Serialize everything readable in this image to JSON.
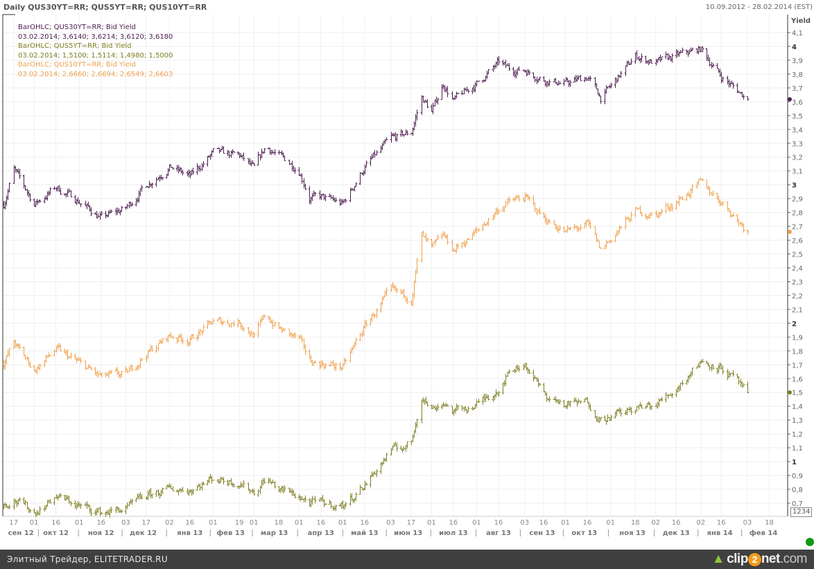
{
  "header": {
    "title": "Daily QUS30YT=RR; QUS5YT=RR; QUS10YT=RR",
    "date_range": "10.09.2012 - 28.02.2014 (EST)"
  },
  "legend": [
    {
      "label": "BarOHLC; QUS30YT=RR; Bid Yield",
      "values": "03.02.2014; 3,6140; 3,6214; 3,6120; 3,6180",
      "color": "#4a1c4e"
    },
    {
      "label": "BarOHLC; QUS5YT=RR; Bid Yield",
      "values": "03.02.2014; 1,5100; 1,5114; 1,4980; 1,5000",
      "color": "#7d7d22"
    },
    {
      "label": "BarOHLC; QUS10YT=RR; Bid Yield",
      "values": "03.02.2014; 2,6660; 2,6694; 2,6549; 2,6603",
      "color": "#f0a04e"
    }
  ],
  "axis_badge": "1234",
  "footer": {
    "text": "Элитный Трейдер, ELITETRADER.RU",
    "logo_text": "clip2net.com"
  },
  "chart_data": {
    "type": "ohlc",
    "title": "Daily QUS30YT=RR; QUS5YT=RR; QUS10YT=RR",
    "ylabel": "Yield",
    "ylim": [
      0.65,
      4.15
    ],
    "yticks": [
      "4,1",
      "4",
      "3,9",
      "3,8",
      "3,7",
      "3,6",
      "3,5",
      "3,4",
      "3,3",
      "3,2",
      "3,1",
      "3",
      "2,9",
      "2,8",
      "2,7",
      "2,6",
      "2,5",
      "2,4",
      "2,3",
      "2,2",
      "2,1",
      "2",
      "1,9",
      "1,8",
      "1,7",
      "1,6",
      "1,5",
      "1,4",
      "1,3",
      "1,2",
      "1,1",
      "1",
      "0,9",
      "0,8",
      "0,7"
    ],
    "xrange": [
      "2012-09-10",
      "2014-02-03"
    ],
    "xticks": [
      {
        "date": "2012-09-17",
        "label": "17"
      },
      {
        "date": "2012-10-01",
        "label": "01"
      },
      {
        "date": "2012-10-16",
        "label": "16"
      },
      {
        "date": "2012-11-01",
        "label": "01"
      },
      {
        "date": "2012-11-16",
        "label": "16"
      },
      {
        "date": "2012-12-03",
        "label": "03"
      },
      {
        "date": "2012-12-17",
        "label": "17"
      },
      {
        "date": "2013-01-02",
        "label": "02"
      },
      {
        "date": "2013-01-16",
        "label": "16"
      },
      {
        "date": "2013-02-01",
        "label": "01"
      },
      {
        "date": "2013-02-19",
        "label": "19"
      },
      {
        "date": "2013-03-01",
        "label": "01"
      },
      {
        "date": "2013-03-18",
        "label": "18"
      },
      {
        "date": "2013-04-01",
        "label": "01"
      },
      {
        "date": "2013-04-16",
        "label": "16"
      },
      {
        "date": "2013-05-01",
        "label": "01"
      },
      {
        "date": "2013-05-16",
        "label": "16"
      },
      {
        "date": "2013-06-03",
        "label": "03"
      },
      {
        "date": "2013-06-17",
        "label": "17"
      },
      {
        "date": "2013-07-01",
        "label": "01"
      },
      {
        "date": "2013-07-16",
        "label": "16"
      },
      {
        "date": "2013-08-01",
        "label": "01"
      },
      {
        "date": "2013-08-16",
        "label": "16"
      },
      {
        "date": "2013-09-03",
        "label": "03"
      },
      {
        "date": "2013-09-16",
        "label": "16"
      },
      {
        "date": "2013-10-01",
        "label": "01"
      },
      {
        "date": "2013-10-16",
        "label": "16"
      },
      {
        "date": "2013-11-01",
        "label": "01"
      },
      {
        "date": "2013-11-18",
        "label": "18"
      },
      {
        "date": "2013-12-02",
        "label": "02"
      },
      {
        "date": "2013-12-16",
        "label": "16"
      },
      {
        "date": "2014-01-02",
        "label": "02"
      },
      {
        "date": "2014-01-16",
        "label": "16"
      },
      {
        "date": "2014-02-03",
        "label": "03"
      },
      {
        "date": "2014-02-18",
        "label": "18"
      }
    ],
    "months": [
      {
        "date": "2012-09-22",
        "label": "сен 12"
      },
      {
        "date": "2012-10-16",
        "label": "окт 12"
      },
      {
        "date": "2012-11-16",
        "label": "ноя 12"
      },
      {
        "date": "2012-12-15",
        "label": "дек 12"
      },
      {
        "date": "2013-01-16",
        "label": "янв 13"
      },
      {
        "date": "2013-02-13",
        "label": "фев 13"
      },
      {
        "date": "2013-03-15",
        "label": "мар 13"
      },
      {
        "date": "2013-04-16",
        "label": "апр 13"
      },
      {
        "date": "2013-05-16",
        "label": "май 13"
      },
      {
        "date": "2013-06-15",
        "label": "июн 13"
      },
      {
        "date": "2013-07-16",
        "label": "июл 13"
      },
      {
        "date": "2013-08-16",
        "label": "авг 13"
      },
      {
        "date": "2013-09-15",
        "label": "сен 13"
      },
      {
        "date": "2013-10-14",
        "label": "окт 13"
      },
      {
        "date": "2013-11-16",
        "label": "ноя 13"
      },
      {
        "date": "2013-12-16",
        "label": "дек 13"
      },
      {
        "date": "2014-01-15",
        "label": "янв 14"
      },
      {
        "date": "2014-02-14",
        "label": "фев 14"
      }
    ],
    "x": [
      "2012-09-10",
      "2012-09-17",
      "2012-10-01",
      "2012-10-16",
      "2012-11-01",
      "2012-11-16",
      "2012-12-03",
      "2012-12-17",
      "2013-01-02",
      "2013-01-16",
      "2013-02-01",
      "2013-02-19",
      "2013-03-01",
      "2013-03-09",
      "2013-03-18",
      "2013-04-01",
      "2013-04-08",
      "2013-04-16",
      "2013-05-01",
      "2013-05-16",
      "2013-06-03",
      "2013-06-17",
      "2013-06-24",
      "2013-07-01",
      "2013-07-09",
      "2013-07-16",
      "2013-08-01",
      "2013-08-16",
      "2013-08-24",
      "2013-09-03",
      "2013-09-16",
      "2013-10-01",
      "2013-10-16",
      "2013-10-25",
      "2013-11-01",
      "2013-11-18",
      "2013-12-02",
      "2013-12-16",
      "2014-01-02",
      "2014-01-16",
      "2014-02-03"
    ],
    "series": [
      {
        "name": "QUS30YT=RR",
        "color": "#4a1c4e",
        "last": 3.618,
        "values": [
          2.86,
          3.11,
          2.86,
          2.98,
          2.88,
          2.76,
          2.83,
          3.0,
          3.13,
          3.06,
          3.23,
          3.21,
          3.11,
          3.28,
          3.21,
          3.11,
          2.91,
          2.91,
          2.86,
          3.13,
          3.33,
          3.38,
          3.63,
          3.53,
          3.73,
          3.61,
          3.73,
          3.88,
          3.83,
          3.83,
          3.76,
          3.73,
          3.78,
          3.63,
          3.71,
          3.93,
          3.88,
          3.93,
          3.98,
          3.78,
          3.618
        ]
      },
      {
        "name": "QUS10YT=RR",
        "color": "#f0a04e",
        "last": 2.6603,
        "values": [
          1.71,
          1.86,
          1.66,
          1.81,
          1.71,
          1.61,
          1.63,
          1.78,
          1.91,
          1.88,
          2.01,
          2.01,
          1.91,
          2.06,
          1.96,
          1.88,
          1.73,
          1.71,
          1.68,
          1.98,
          2.23,
          2.18,
          2.63,
          2.53,
          2.63,
          2.53,
          2.66,
          2.83,
          2.88,
          2.91,
          2.76,
          2.66,
          2.71,
          2.53,
          2.61,
          2.81,
          2.78,
          2.88,
          3.01,
          2.88,
          2.6603
        ]
      },
      {
        "name": "QUS5YT=RR",
        "color": "#7d7d22",
        "last": 1.5,
        "values": [
          0.68,
          0.73,
          0.63,
          0.75,
          0.68,
          0.63,
          0.66,
          0.75,
          0.8,
          0.8,
          0.88,
          0.85,
          0.78,
          0.88,
          0.8,
          0.75,
          0.7,
          0.7,
          0.68,
          0.83,
          1.08,
          1.13,
          1.48,
          1.38,
          1.43,
          1.36,
          1.41,
          1.53,
          1.66,
          1.71,
          1.48,
          1.41,
          1.43,
          1.31,
          1.33,
          1.38,
          1.41,
          1.53,
          1.73,
          1.68,
          1.5
        ]
      }
    ]
  }
}
